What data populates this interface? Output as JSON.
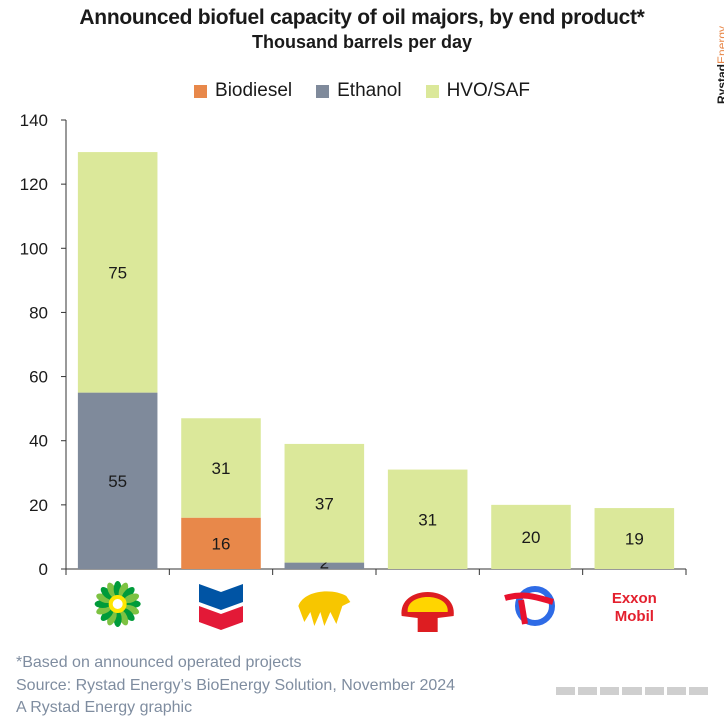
{
  "title": "Announced biofuel capacity of oil majors, by end product*",
  "subtitle": "Thousand barrels per day",
  "brand": {
    "part1": "Rystad",
    "part2": "Energy"
  },
  "colors": {
    "Biodiesel": "#e8884a",
    "Ethanol": "#7f8a9b",
    "HVO/SAF": "#dbe89a",
    "axis": "#333333"
  },
  "footnotes": [
    "*Based on announced operated projects",
    "Source: Rystad Energy’s BioEnergy Solution, November 2024",
    "A Rystad Energy graphic"
  ],
  "chart_data": {
    "type": "bar",
    "stacked": true,
    "categories": [
      "BP",
      "Chevron",
      "Eni",
      "Shell",
      "TotalEnergies",
      "ExxonMobil"
    ],
    "category_display": "company logos",
    "series": [
      {
        "name": "Biodiesel",
        "values": [
          0,
          16,
          0,
          0,
          0,
          0
        ]
      },
      {
        "name": "Ethanol",
        "values": [
          55,
          0,
          2,
          0,
          0,
          0
        ]
      },
      {
        "name": "HVO/SAF",
        "values": [
          75,
          31,
          37,
          31,
          20,
          19
        ]
      }
    ],
    "ylim": [
      0,
      140
    ],
    "yticks": [
      0,
      20,
      40,
      60,
      80,
      100,
      120,
      140
    ],
    "grid": false,
    "legend_position": "top",
    "logo_text": {
      "ExxonMobil": [
        "Exxon",
        "Mobil"
      ]
    }
  }
}
